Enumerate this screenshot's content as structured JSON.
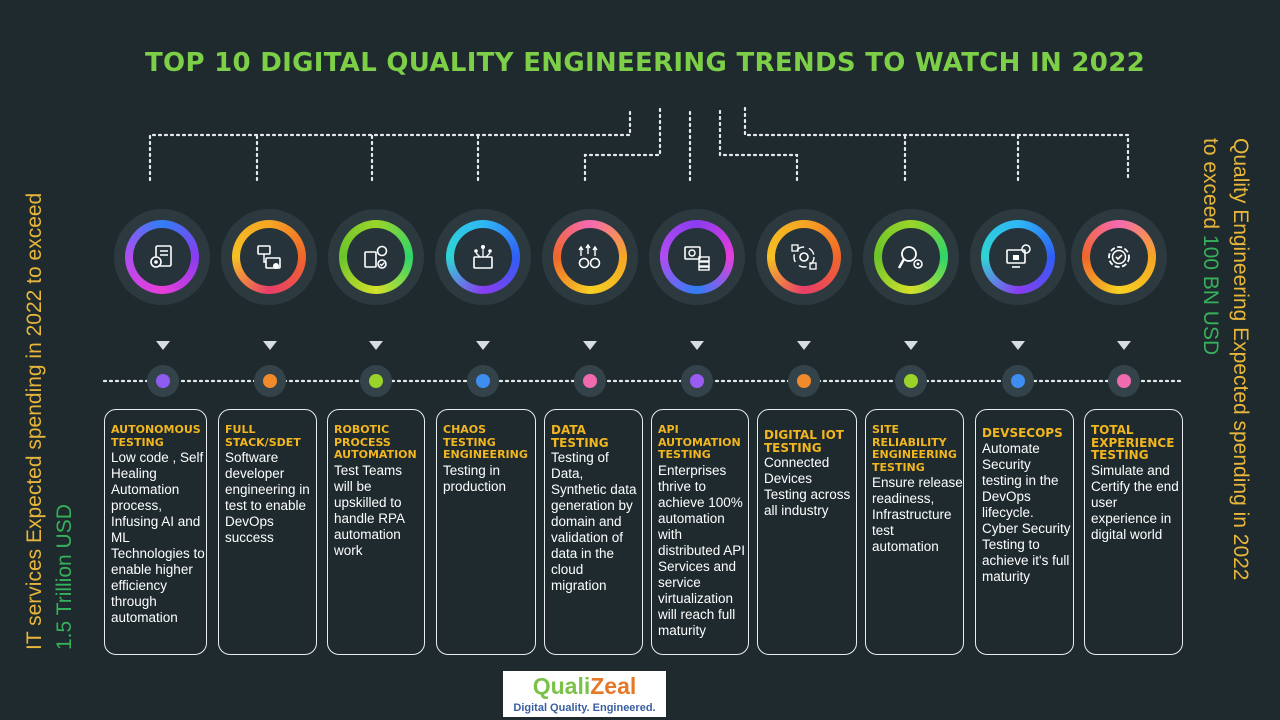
{
  "title": "TOP 10 DIGITAL QUALITY ENGINEERING TRENDS TO WATCH IN 2022",
  "side_left": {
    "line1": "IT services Expected spending in 2022 to exceed",
    "line2": "1.5 Trillion USD"
  },
  "side_right": {
    "line1": "Quality Engineering Expected spending in 2022",
    "line2_prefix": "to exceed ",
    "line2_value": "100 BN USD"
  },
  "colors": {
    "title": "#7dcf48",
    "heading": "#f2b61f",
    "side_yellow": "#e8b63a",
    "side_green": "#37b25a"
  },
  "trends": [
    {
      "heading": "AUTONOMOUS TESTING",
      "body": "Low code , Self Healing Automation process, Infusing AI and ML Technologies to enable higher efficiency through automation",
      "icon": "gear-document-icon",
      "dot_color": "#8e5bf0"
    },
    {
      "heading": "FULL STACK/SDET",
      "body": "Software developer engineering in test to enable DevOps success",
      "icon": "flow-document-icon",
      "dot_color": "#f08a2a"
    },
    {
      "heading": "ROBOTIC PROCESS AUTOMATION",
      "body": "Test Teams will be upskilled to handle RPA automation work",
      "icon": "process-gear-icon",
      "dot_color": "#9ad42a"
    },
    {
      "heading": "CHAOS TESTING ENGINEERING",
      "body": "Testing in production",
      "icon": "network-board-icon",
      "dot_color": "#3d8ef0"
    },
    {
      "heading": "DATA TESTING",
      "body": "Testing of Data, Synthetic data generation by domain and validation of data in the cloud migration",
      "icon": "gears-arrows-icon",
      "dot_color": "#f06ab0"
    },
    {
      "heading": "API AUTOMATION TESTING",
      "body": "Enterprises thrive to achieve 100% automation with distributed API Services and service virtualization will reach full maturity",
      "icon": "api-server-icon",
      "dot_color": "#9a5cf0"
    },
    {
      "heading": "DIGITAL IOT TESTING",
      "body": "Connected Devices Testing across all industry",
      "icon": "iot-cycle-icon",
      "dot_color": "#f08a2a"
    },
    {
      "heading": "SITE RELIABILITY ENGINEERING TESTING",
      "body": "Ensure release readiness, Infrastructure test automation",
      "icon": "magnifier-gear-icon",
      "dot_color": "#9ad42a"
    },
    {
      "heading": "DEVSECOPS",
      "body": "Automate Security testing in the DevOps lifecycle. Cyber Security Testing to achieve it's full maturity",
      "icon": "security-screen-icon",
      "dot_color": "#3d8ef0"
    },
    {
      "heading": "TOTAL EXPERIENCE TESTING",
      "body": "Simulate and Certify the end user experience in digital world",
      "icon": "gear-check-icon",
      "dot_color": "#f06ab0"
    }
  ],
  "logo": {
    "brand_part1": "Quali",
    "brand_part2": "Zeal",
    "tagline": "Digital Quality. Engineered."
  }
}
